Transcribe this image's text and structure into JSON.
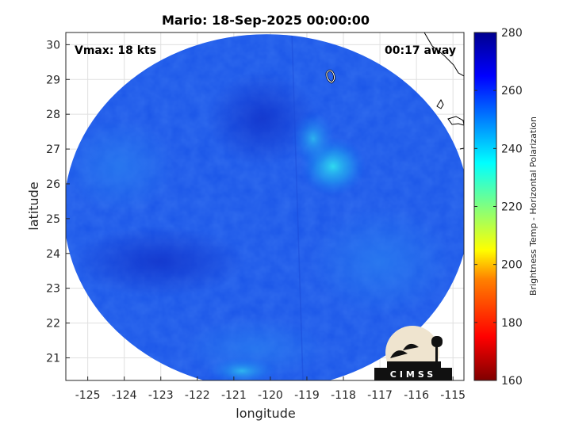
{
  "title": "Mario: 18-Sep-2025 00:00:00",
  "annotations": {
    "vmax": "Vmax: 18 kts",
    "away": "00:17 away"
  },
  "map": {
    "xlabel": "longitude",
    "ylabel": "latitude",
    "xlim": [
      -125.6,
      -114.7
    ],
    "ylim": [
      20.35,
      30.35
    ],
    "xticks": [
      -125,
      -124,
      -123,
      -122,
      -121,
      -120,
      -119,
      -118,
      -117,
      -116,
      -115
    ],
    "yticks": [
      21,
      22,
      23,
      24,
      25,
      26,
      27,
      28,
      29,
      30
    ],
    "grid": true,
    "swath_center": [
      -120.1,
      25.2
    ],
    "swath_radius_deg": [
      5.55,
      5.1
    ],
    "background_tb": 260,
    "bright_region_center": [
      -118.4,
      26.5
    ],
    "bright_region_tb": 245
  },
  "colorbar": {
    "label": "Brightness Temp - Horizontal Polarization",
    "ticks": [
      160,
      180,
      200,
      220,
      240,
      260,
      280
    ],
    "range": [
      160,
      280
    ],
    "colormap": [
      "#7f0000",
      "#ff0000",
      "#ff8000",
      "#ffff00",
      "#80ff80",
      "#00ffff",
      "#0080ff",
      "#0000ff",
      "#00008f"
    ]
  },
  "logo": {
    "text": "CIMSS"
  }
}
